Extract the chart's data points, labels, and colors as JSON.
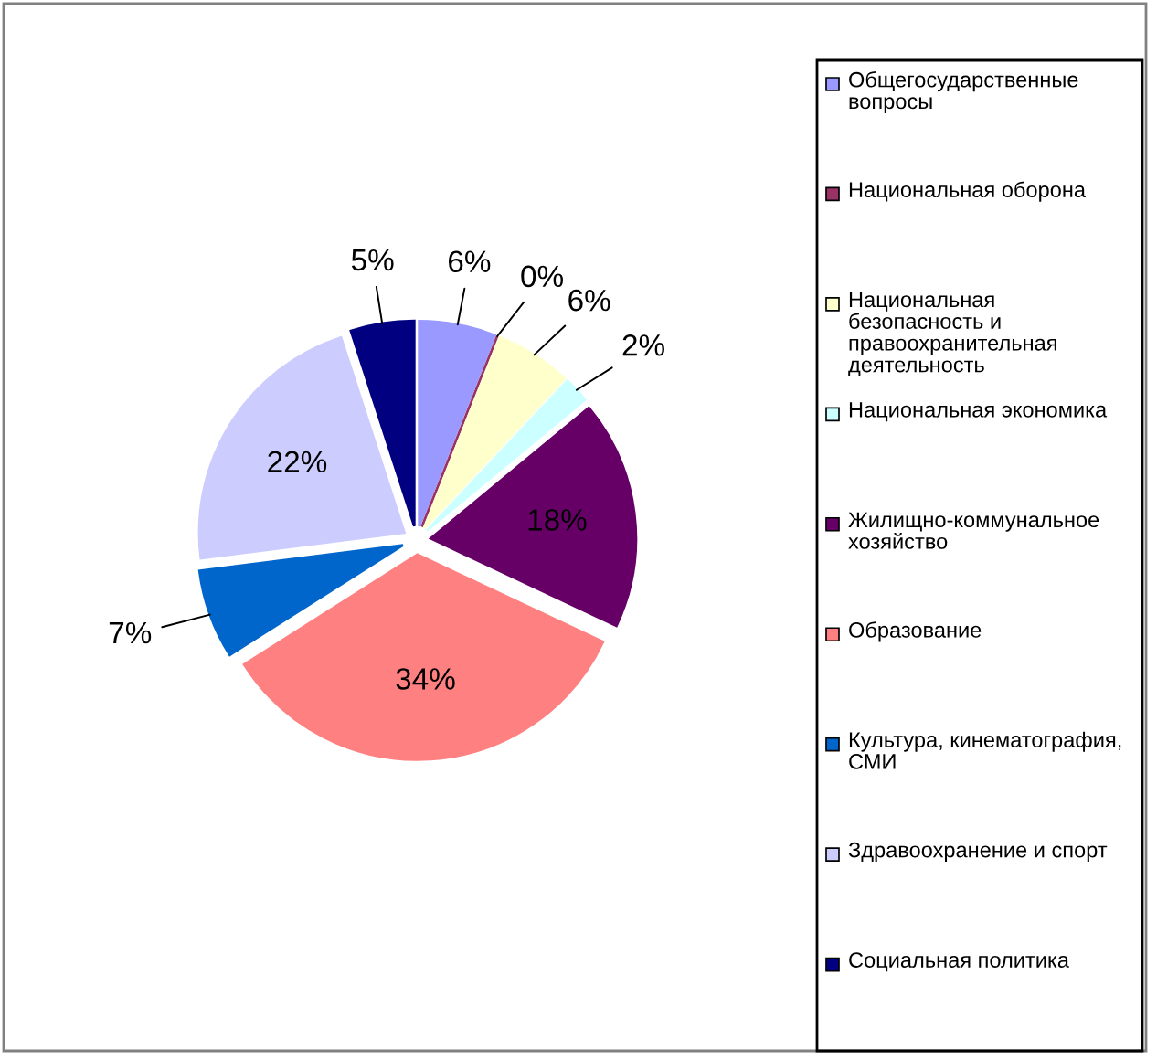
{
  "chart_data": {
    "type": "pie",
    "categories": [
      "Общегосударственные вопросы",
      "Национальная оборона",
      "Национальная безопасность и правоохранительная деятельность",
      "Национальная экономика",
      "Жилищно-коммунальное хозяйство",
      "Образование",
      "Культура, кинематография, СМИ",
      "Здравоохранение и спорт",
      "Социальная политика"
    ],
    "values": [
      6,
      0,
      6,
      2,
      18,
      34,
      7,
      22,
      5
    ],
    "colors": [
      "#9999ff",
      "#993366",
      "#ffffcc",
      "#ccffff",
      "#660066",
      "#ff8080",
      "#0066cc",
      "#ccccff",
      "#000080"
    ],
    "value_labels": [
      "6%",
      "0%",
      "6%",
      "2%",
      "18%",
      "34%",
      "7%",
      "22%",
      "5%"
    ],
    "legend": "right"
  }
}
